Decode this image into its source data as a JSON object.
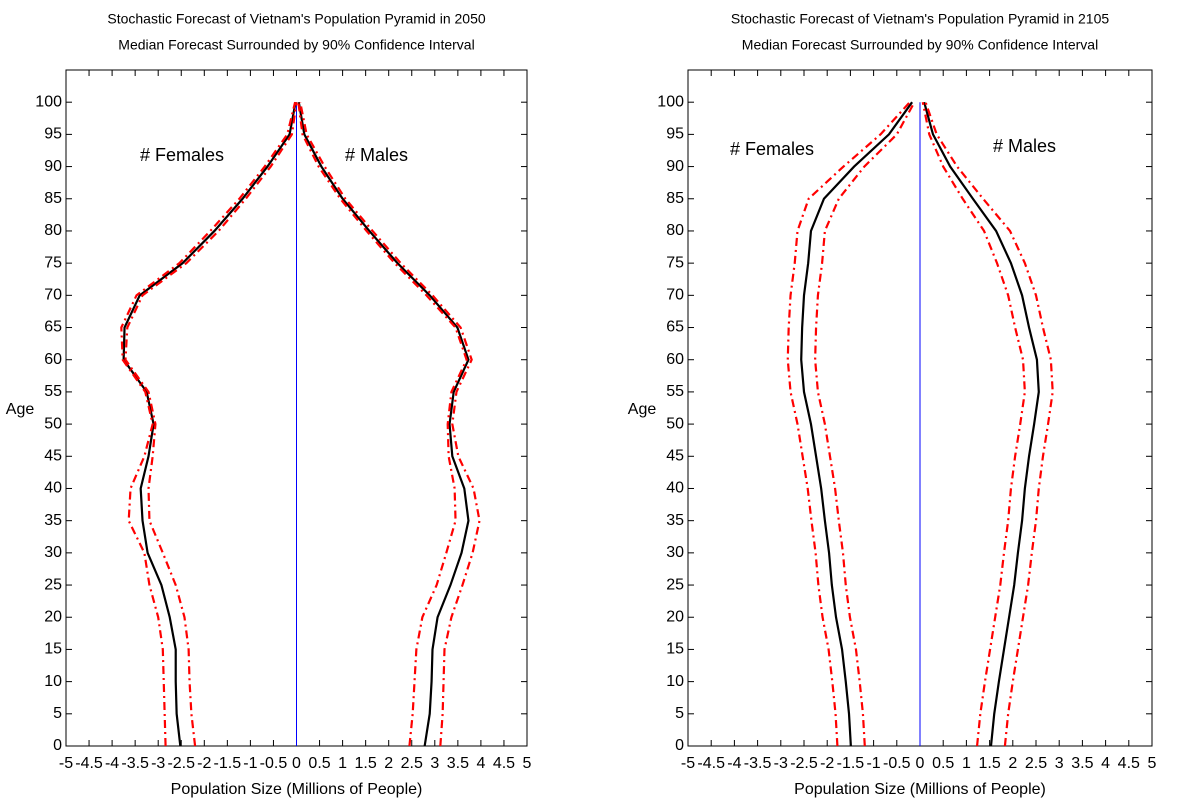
{
  "chart_data": [
    {
      "type": "line",
      "title": "Stochastic Forecast of Vietnam's Population Pyramid in 2050",
      "subtitle": "Median Forecast Surrounded by 90% Confidence Interval",
      "x_label": "Population Size (Millions of People)",
      "y_label": "Age",
      "annotations": [
        "# Females",
        "# Males"
      ],
      "xlim": [
        -5,
        5
      ],
      "ylim": [
        0,
        105
      ],
      "xticks": [
        -5,
        -4.5,
        -4,
        -3.5,
        -3,
        -2.5,
        -2,
        -1.5,
        -1,
        -0.5,
        0,
        0.5,
        1,
        1.5,
        2,
        2.5,
        3,
        3.5,
        4,
        4.5,
        5
      ],
      "yticks": [
        0,
        5,
        10,
        15,
        20,
        25,
        30,
        35,
        40,
        45,
        50,
        55,
        60,
        65,
        70,
        75,
        80,
        85,
        90,
        95,
        100
      ],
      "reference_x": 0,
      "reference_color": "#0000ff",
      "y": [
        0,
        5,
        10,
        15,
        20,
        25,
        30,
        35,
        40,
        45,
        50,
        55,
        60,
        65,
        70,
        75,
        80,
        85,
        90,
        95,
        100
      ],
      "series": [
        {
          "color": "#000000",
          "style": "solid",
          "values": [
            -2.52,
            -2.6,
            -2.62,
            -2.62,
            -2.75,
            -2.93,
            -3.23,
            -3.34,
            -3.38,
            -3.21,
            -3.1,
            -3.25,
            -3.75,
            -3.73,
            -3.4,
            -2.47,
            -1.78,
            -1.17,
            -0.63,
            -0.15,
            -0.02
          ]
        },
        {
          "color": "#ff0000",
          "style": "dashdot",
          "values": [
            -2.84,
            -2.86,
            -2.88,
            -2.9,
            -3.0,
            -3.19,
            -3.3,
            -3.64,
            -3.6,
            -3.3,
            -3.12,
            -3.28,
            -3.77,
            -3.8,
            -3.47,
            -2.54,
            -1.87,
            -1.24,
            -0.69,
            -0.2,
            -0.03
          ]
        },
        {
          "color": "#ff0000",
          "style": "dashdot",
          "values": [
            -2.2,
            -2.28,
            -2.32,
            -2.34,
            -2.43,
            -2.62,
            -2.9,
            -3.19,
            -3.21,
            -3.12,
            -3.06,
            -3.21,
            -3.71,
            -3.67,
            -3.34,
            -2.39,
            -1.69,
            -1.1,
            -0.56,
            -0.1,
            0
          ]
        },
        {
          "color": "#000000",
          "style": "solid",
          "values": [
            2.78,
            2.89,
            2.93,
            2.95,
            3.06,
            3.34,
            3.58,
            3.73,
            3.64,
            3.38,
            3.32,
            3.41,
            3.73,
            3.49,
            2.89,
            2.19,
            1.58,
            1.0,
            0.54,
            0.17,
            0.05
          ]
        },
        {
          "color": "#ff0000",
          "style": "dashdot",
          "values": [
            2.45,
            2.52,
            2.56,
            2.6,
            2.73,
            3.04,
            3.25,
            3.45,
            3.43,
            3.3,
            3.28,
            3.36,
            3.69,
            3.45,
            2.82,
            2.13,
            1.52,
            0.95,
            0.48,
            0.13,
            0.04
          ]
        },
        {
          "color": "#ff0000",
          "style": "dashdot",
          "values": [
            3.12,
            3.17,
            3.19,
            3.21,
            3.36,
            3.6,
            3.82,
            3.97,
            3.84,
            3.51,
            3.38,
            3.47,
            3.8,
            3.56,
            2.95,
            2.26,
            1.65,
            1.06,
            0.61,
            0.22,
            0.08
          ]
        }
      ]
    },
    {
      "type": "line",
      "title": "Stochastic Forecast of Vietnam's Population Pyramid in 2105",
      "subtitle": "Median Forecast Surrounded by 90% Confidence Interval",
      "x_label": "Population Size (Millions of People)",
      "y_label": "Age",
      "annotations": [
        "# Females",
        "# Males"
      ],
      "xlim": [
        -5,
        5
      ],
      "ylim": [
        0,
        105
      ],
      "xticks": [
        -5,
        -4.5,
        -4,
        -3.5,
        -3,
        -2.5,
        -2,
        -1.5,
        -1,
        -0.5,
        0,
        0.5,
        1,
        1.5,
        2,
        2.5,
        3,
        3.5,
        4,
        4.5,
        5
      ],
      "yticks": [
        0,
        5,
        10,
        15,
        20,
        25,
        30,
        35,
        40,
        45,
        50,
        55,
        60,
        65,
        70,
        75,
        80,
        85,
        90,
        95,
        100
      ],
      "reference_x": 0,
      "reference_color": "#0000ff",
      "y": [
        0,
        5,
        10,
        15,
        20,
        25,
        30,
        35,
        40,
        45,
        50,
        55,
        60,
        65,
        70,
        75,
        80,
        85,
        90,
        95,
        100
      ],
      "series": [
        {
          "color": "#000000",
          "style": "solid",
          "values": [
            -1.49,
            -1.53,
            -1.6,
            -1.68,
            -1.81,
            -1.9,
            -1.96,
            -2.05,
            -2.13,
            -2.24,
            -2.35,
            -2.5,
            -2.56,
            -2.54,
            -2.5,
            -2.41,
            -2.35,
            -2.07,
            -1.42,
            -0.67,
            -0.17
          ]
        },
        {
          "color": "#ff0000",
          "style": "dashdot",
          "values": [
            -1.78,
            -1.82,
            -1.89,
            -1.97,
            -2.1,
            -2.19,
            -2.25,
            -2.34,
            -2.42,
            -2.53,
            -2.64,
            -2.79,
            -2.85,
            -2.83,
            -2.79,
            -2.7,
            -2.64,
            -2.4,
            -1.65,
            -0.85,
            -0.22
          ]
        },
        {
          "color": "#ff0000",
          "style": "dashdot",
          "values": [
            -1.19,
            -1.23,
            -1.3,
            -1.38,
            -1.51,
            -1.6,
            -1.66,
            -1.75,
            -1.83,
            -1.94,
            -2.05,
            -2.2,
            -2.26,
            -2.24,
            -2.2,
            -2.11,
            -2.05,
            -1.75,
            -1.2,
            -0.5,
            -0.12
          ]
        },
        {
          "color": "#000000",
          "style": "solid",
          "values": [
            1.53,
            1.6,
            1.7,
            1.81,
            1.92,
            2.03,
            2.11,
            2.2,
            2.26,
            2.35,
            2.46,
            2.56,
            2.52,
            2.35,
            2.2,
            1.96,
            1.64,
            1.14,
            0.65,
            0.28,
            0.09
          ]
        },
        {
          "color": "#ff0000",
          "style": "dashdot",
          "values": [
            1.23,
            1.3,
            1.4,
            1.51,
            1.62,
            1.73,
            1.81,
            1.9,
            1.96,
            2.05,
            2.16,
            2.26,
            2.22,
            2.05,
            1.9,
            1.66,
            1.38,
            0.92,
            0.5,
            0.2,
            0.06
          ]
        },
        {
          "color": "#ff0000",
          "style": "dashdot",
          "values": [
            1.83,
            1.9,
            2.0,
            2.11,
            2.22,
            2.33,
            2.41,
            2.5,
            2.56,
            2.65,
            2.76,
            2.86,
            2.82,
            2.65,
            2.5,
            2.26,
            1.94,
            1.36,
            0.8,
            0.36,
            0.12
          ]
        }
      ]
    }
  ]
}
